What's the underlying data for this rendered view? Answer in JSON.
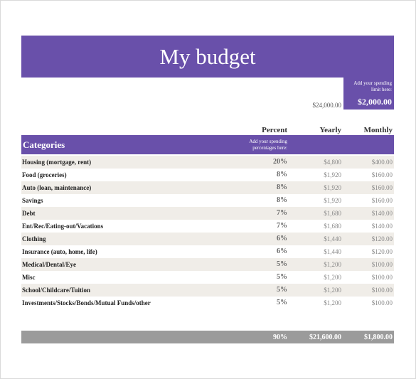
{
  "title": "My budget",
  "limit": {
    "hint": "Add your spending limit here:",
    "monthly_value": "$2,000.00",
    "yearly_value": "$24,000.00"
  },
  "columns": {
    "percent": "Percent",
    "yearly": "Yearly",
    "monthly": "Monthly"
  },
  "categories_header": {
    "title": "Categories",
    "percent_hint": "Add your spending percentages here:"
  },
  "rows": [
    {
      "name": "Housing (mortgage, rent)",
      "percent": "20%",
      "yearly": "$4,800",
      "monthly": "$400.00"
    },
    {
      "name": "Food (groceries)",
      "percent": "8%",
      "yearly": "$1,920",
      "monthly": "$160.00"
    },
    {
      "name": "Auto (loan, maintenance)",
      "percent": "8%",
      "yearly": "$1,920",
      "monthly": "$160.00"
    },
    {
      "name": "Savings",
      "percent": "8%",
      "yearly": "$1,920",
      "monthly": "$160.00"
    },
    {
      "name": "Debt",
      "percent": "7%",
      "yearly": "$1,680",
      "monthly": "$140.00"
    },
    {
      "name": "Ent/Rec/Eating-out/Vacations",
      "percent": "7%",
      "yearly": "$1,680",
      "monthly": "$140.00"
    },
    {
      "name": "Clothing",
      "percent": "6%",
      "yearly": "$1,440",
      "monthly": "$120.00"
    },
    {
      "name": "Insurance (auto, home, life)",
      "percent": "6%",
      "yearly": "$1,440",
      "monthly": "$120.00"
    },
    {
      "name": "Medical/Dental/Eye",
      "percent": "5%",
      "yearly": "$1,200",
      "monthly": "$100.00"
    },
    {
      "name": "Misc",
      "percent": "5%",
      "yearly": "$1,200",
      "monthly": "$100.00"
    },
    {
      "name": "School/Childcare/Tuition",
      "percent": "5%",
      "yearly": "$1,200",
      "monthly": "$100.00"
    },
    {
      "name": "Investments/Stocks/Bonds/Mutual Funds/other",
      "percent": "5%",
      "yearly": "$1,200",
      "monthly": "$100.00"
    }
  ],
  "totals": {
    "percent": "90%",
    "yearly": "$21,600.00",
    "monthly": "$1,800.00"
  },
  "colors": {
    "accent": "#6950aa",
    "row_shade": "#f0ede8",
    "total_bar": "#9b9b9b"
  }
}
